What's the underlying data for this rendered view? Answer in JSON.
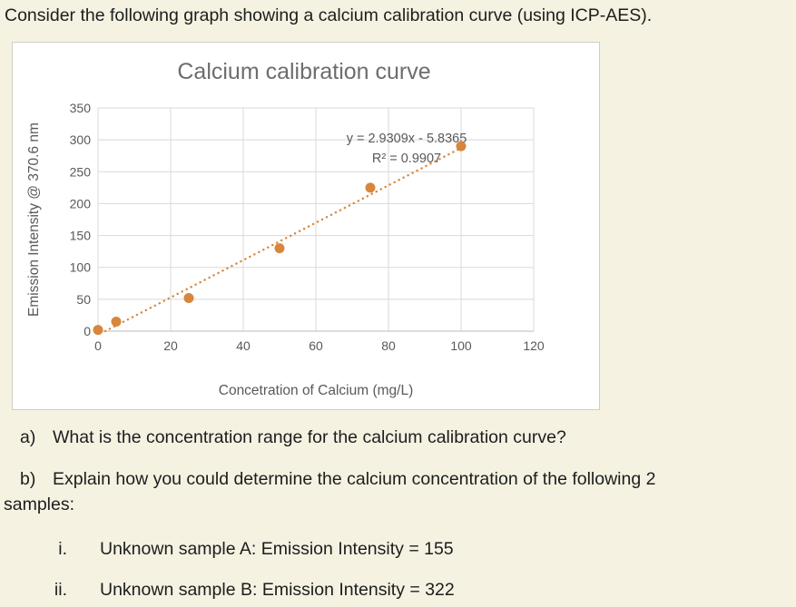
{
  "page": {
    "intro": "Consider the following graph showing a calcium calibration curve (using ICP-AES).",
    "questions": {
      "a_label": "a)",
      "a_text": "What is the concentration range for the calcium calibration curve?",
      "b_label": "b)",
      "b_text": "Explain how you could determine the calcium concentration of the following 2",
      "b_cont": "samples:",
      "i_label": "i.",
      "i_text": "Unknown sample A: Emission Intensity = 155",
      "ii_label": "ii.",
      "ii_text": "Unknown sample B: Emission Intensity = 322"
    }
  },
  "chart_data": {
    "type": "scatter",
    "title": "Calcium calibration curve",
    "xlabel": "Concetration of Calcium (mg/L)",
    "ylabel": "Emission Intensity @ 370.6 nm",
    "x": [
      0,
      5,
      25,
      50,
      75,
      100
    ],
    "y": [
      2,
      15,
      52,
      130,
      225,
      290
    ],
    "xlim": [
      0,
      120
    ],
    "ylim": [
      0,
      350
    ],
    "xticks": [
      0,
      20,
      40,
      60,
      80,
      100,
      120
    ],
    "yticks": [
      0,
      50,
      100,
      150,
      200,
      250,
      300,
      350
    ],
    "grid": true,
    "legend": "none",
    "trendline": {
      "slope": 2.9309,
      "intercept": -5.8365,
      "equation": "y = 2.9309x - 5.8365",
      "r2": "R² = 0.9907",
      "x_start": 2,
      "x_end": 101,
      "style": "dotted"
    },
    "colors": {
      "points": "#d8863c",
      "trendline": "#d8863c",
      "grid": "#d9d9d9",
      "axis": "#bdbdbd",
      "tick_text": "#595959",
      "title_text": "#6d6d6d",
      "annotation_text": "#595959"
    }
  }
}
